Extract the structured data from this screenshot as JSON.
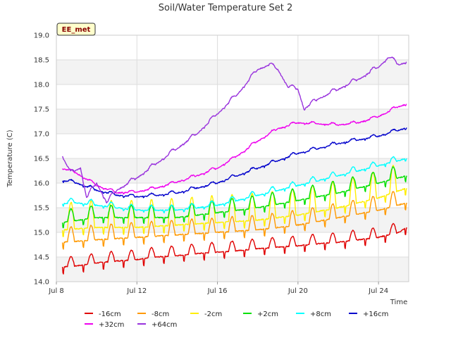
{
  "chart_data": {
    "type": "line",
    "title": "Soil/Water Temperature Set 2",
    "xlabel": "Time",
    "ylabel": "Temperature (C)",
    "badge": "EE_met",
    "x_domain": [
      "Jul 8",
      "Jul 25.5"
    ],
    "xticks": [
      {
        "day": 8,
        "label": "Jul 8"
      },
      {
        "day": 12,
        "label": "Jul 12"
      },
      {
        "day": 16,
        "label": "Jul 16"
      },
      {
        "day": 20,
        "label": "Jul 20"
      },
      {
        "day": 24,
        "label": "Jul 24"
      }
    ],
    "ylim": [
      14.0,
      19.0
    ],
    "yticks": [
      "14.0",
      "14.5",
      "15.0",
      "15.5",
      "16.0",
      "16.5",
      "17.0",
      "17.5",
      "18.0",
      "18.5",
      "19.0"
    ],
    "grid": true,
    "legend_position": "bottom",
    "series": [
      {
        "name": "-16cm",
        "color": "#e00000",
        "base_start": 14.28,
        "base_end": 14.95,
        "amplitude": 0.2,
        "dip": 0.15,
        "x": [
          "Jul 8.3",
          "Jul 9",
          "Jul 10",
          "Jul 11",
          "Jul 12",
          "Jul 13",
          "Jul 14",
          "Jul 15",
          "Jul 16",
          "Jul 17",
          "Jul 18",
          "Jul 19",
          "Jul 20",
          "Jul 21",
          "Jul 22",
          "Jul 23",
          "Jul 24",
          "Jul 25",
          "Jul 25.4"
        ],
        "y": [
          14.3,
          14.32,
          14.38,
          14.42,
          14.45,
          14.5,
          14.53,
          14.57,
          14.6,
          14.63,
          14.67,
          14.7,
          14.73,
          14.77,
          14.8,
          14.85,
          14.9,
          15.0,
          15.1
        ]
      },
      {
        "name": "-8cm",
        "color": "#ff9900",
        "base_start": 14.7,
        "base_end": 15.5,
        "amplitude": 0.3,
        "dip": 0.15,
        "x": [
          "Jul 8.3",
          "Jul 10",
          "Jul 12",
          "Jul 14",
          "Jul 16",
          "Jul 18",
          "Jul 20",
          "Jul 22",
          "Jul 24",
          "Jul 25.4"
        ],
        "y": [
          14.8,
          14.85,
          14.9,
          14.95,
          15.0,
          15.05,
          15.15,
          15.3,
          15.45,
          15.6
        ]
      },
      {
        "name": "-2cm",
        "color": "#ffee00",
        "base_start": 14.85,
        "base_end": 15.75,
        "amplitude": 0.55,
        "dip": 0.15,
        "x": [
          "Jul 8.3",
          "Jul 10",
          "Jul 12",
          "Jul 14",
          "Jul 16",
          "Jul 18",
          "Jul 20",
          "Jul 22",
          "Jul 24",
          "Jul 25.4"
        ],
        "y": [
          15.05,
          15.1,
          15.1,
          15.15,
          15.2,
          15.25,
          15.35,
          15.5,
          15.7,
          15.9
        ]
      },
      {
        "name": "+2cm",
        "color": "#00e000",
        "base_start": 15.12,
        "base_end": 15.9,
        "amplitude": 0.25,
        "dip": 0.12,
        "x": [
          "Jul 8.3",
          "Jul 10",
          "Jul 12",
          "Jul 14",
          "Jul 16",
          "Jul 18",
          "Jul 20",
          "Jul 22",
          "Jul 24",
          "Jul 25.4"
        ],
        "y": [
          15.2,
          15.3,
          15.3,
          15.3,
          15.4,
          15.5,
          15.65,
          15.8,
          16.0,
          16.15
        ]
      },
      {
        "name": "+8cm",
        "color": "#00ffff",
        "base_start": 15.55,
        "base_end": 16.4,
        "amplitude": 0.1,
        "dip": 0.05,
        "x": [
          "Jul 8.3",
          "Jul 9",
          "Jul 10",
          "Jul 11",
          "Jul 12",
          "Jul 14",
          "Jul 16",
          "Jul 18",
          "Jul 20",
          "Jul 22",
          "Jul 24",
          "Jul 25.4"
        ],
        "y": [
          15.58,
          15.6,
          15.55,
          15.5,
          15.45,
          15.45,
          15.55,
          15.75,
          15.95,
          16.15,
          16.35,
          16.5
        ]
      },
      {
        "name": "+16cm",
        "color": "#0000cc",
        "base_start": 15.95,
        "base_end": 17.05,
        "amplitude": 0.05,
        "dip": 0.03,
        "x": [
          "Jul 8.3",
          "Jul 9",
          "Jul 10",
          "Jul 11",
          "Jul 12",
          "Jul 13",
          "Jul 14",
          "Jul 16",
          "Jul 18",
          "Jul 20",
          "Jul 22",
          "Jul 24",
          "Jul 25.4"
        ],
        "y": [
          16.05,
          16.0,
          15.85,
          15.75,
          15.72,
          15.75,
          15.8,
          16.0,
          16.3,
          16.6,
          16.8,
          16.95,
          17.12
        ]
      },
      {
        "name": "+32cm",
        "color": "#ee00ee",
        "base_start": 16.0,
        "base_end": 17.55,
        "amplitude": 0.04,
        "dip": 0.02,
        "x": [
          "Jul 8.3",
          "Jul 9",
          "Jul 10",
          "Jul 11",
          "Jul 12",
          "Jul 13",
          "Jul 14",
          "Jul 15",
          "Jul 16",
          "Jul 17",
          "Jul 18",
          "Jul 19",
          "Jul 20",
          "Jul 21",
          "Jul 22",
          "Jul 23",
          "Jul 24",
          "Jul 25",
          "Jul 25.4"
        ],
        "y": [
          16.3,
          16.2,
          15.95,
          15.8,
          15.82,
          15.9,
          16.02,
          16.15,
          16.3,
          16.55,
          16.85,
          17.1,
          17.22,
          17.2,
          17.18,
          17.22,
          17.35,
          17.55,
          17.6
        ]
      },
      {
        "name": "+64cm",
        "color": "#9933dd",
        "base_start": 16.0,
        "base_end": 18.5,
        "amplitude": 0.06,
        "dip": 0.02,
        "x": [
          "Jul 8.3",
          "Jul 8.7",
          "Jul 9.2",
          "Jul 9.5",
          "Jul 10",
          "Jul 10.5",
          "Jul 11",
          "Jul 12",
          "Jul 13",
          "Jul 14",
          "Jul 15",
          "Jul 16",
          "Jul 17",
          "Jul 18",
          "Jul 18.6",
          "Jul 19",
          "Jul 19.5",
          "Jul 20",
          "Jul 20.3",
          "Jul 21",
          "Jul 22",
          "Jul 23",
          "Jul 24",
          "Jul 24.5",
          "Jul 25",
          "Jul 25.4"
        ],
        "y": [
          16.55,
          16.2,
          16.3,
          15.7,
          16.0,
          15.6,
          15.85,
          16.1,
          16.4,
          16.7,
          17.0,
          17.4,
          17.8,
          18.3,
          18.4,
          18.3,
          17.95,
          17.9,
          17.5,
          17.7,
          17.9,
          18.1,
          18.35,
          18.55,
          18.4,
          18.45
        ]
      }
    ]
  }
}
